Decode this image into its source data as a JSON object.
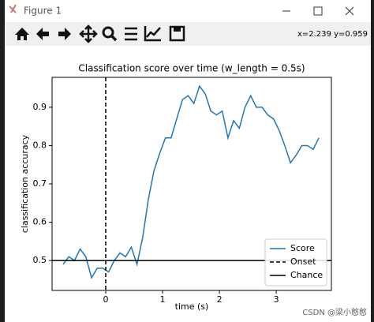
{
  "window": {
    "title": "Figure 1",
    "coordinates": "x=2.239 y=0.959"
  },
  "watermark": "CSDN @梁小憨憨",
  "chart_data": {
    "type": "line",
    "title": "Classification score over time (w_length = 0.5s)",
    "x_label": "time (s)",
    "y_label": "classification accuracy",
    "x": [
      -0.75,
      -0.65,
      -0.55,
      -0.45,
      -0.35,
      -0.25,
      -0.15,
      -0.05,
      0.05,
      0.15,
      0.25,
      0.35,
      0.45,
      0.55,
      0.65,
      0.75,
      0.85,
      0.95,
      1.05,
      1.15,
      1.25,
      1.35,
      1.45,
      1.55,
      1.65,
      1.75,
      1.85,
      1.95,
      2.05,
      2.15,
      2.25,
      2.35,
      2.45,
      2.55,
      2.65,
      2.75,
      2.85,
      2.95,
      3.05,
      3.15,
      3.25,
      3.35,
      3.45,
      3.55,
      3.65,
      3.75
    ],
    "series": [
      {
        "name": "Score",
        "color": "#1f77b4",
        "values": [
          0.49,
          0.51,
          0.5,
          0.53,
          0.51,
          0.455,
          0.48,
          0.48,
          0.47,
          0.5,
          0.52,
          0.51,
          0.535,
          0.49,
          0.56,
          0.66,
          0.735,
          0.78,
          0.82,
          0.82,
          0.87,
          0.92,
          0.93,
          0.91,
          0.955,
          0.935,
          0.89,
          0.88,
          0.89,
          0.82,
          0.865,
          0.845,
          0.9,
          0.93,
          0.9,
          0.9,
          0.88,
          0.87,
          0.84,
          0.8,
          0.755,
          0.775,
          0.8,
          0.8,
          0.79,
          0.82
        ]
      }
    ],
    "reference_lines": [
      {
        "name": "Onset",
        "axis": "x",
        "value": 0,
        "style": "dashed",
        "color": "#000000"
      },
      {
        "name": "Chance",
        "axis": "y",
        "value": 0.5,
        "style": "solid",
        "color": "#000000"
      }
    ],
    "xlim": [
      -0.944,
      3.97
    ],
    "ylim": [
      0.422,
      0.978
    ],
    "xticks": [
      0,
      1,
      2,
      3
    ],
    "yticks": [
      0.5,
      0.6,
      0.7,
      0.8,
      0.9
    ],
    "legend": "lower right"
  }
}
